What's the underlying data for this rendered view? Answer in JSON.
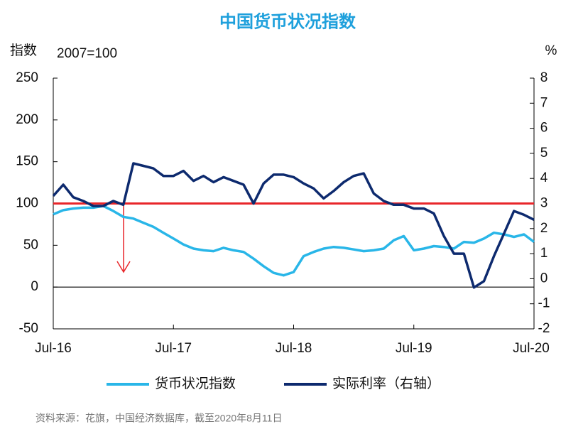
{
  "chart_data": {
    "type": "line",
    "title": "中国货币状况指数",
    "y_label": "指数",
    "y_note": "2007=100",
    "y2_label": "%",
    "source": "资料来源：花旗，中国经济数据库，截至2020年8月11日",
    "categories": [
      "Jul-16",
      null,
      null,
      null,
      null,
      null,
      null,
      null,
      null,
      null,
      null,
      null,
      "Jul-17",
      null,
      null,
      null,
      null,
      null,
      null,
      null,
      null,
      null,
      null,
      null,
      "Jul-18",
      null,
      null,
      null,
      null,
      null,
      null,
      null,
      null,
      null,
      null,
      null,
      "Jul-19",
      null,
      null,
      null,
      null,
      null,
      null,
      null,
      null,
      null,
      null,
      null,
      "Jul-20"
    ],
    "series": [
      {
        "name": "货币状况指数",
        "color": "#29b6e8",
        "axis": "y",
        "values": [
          87,
          92,
          94,
          95,
          95,
          97,
          91,
          84,
          82,
          77,
          72,
          65,
          58,
          51,
          46,
          44,
          43,
          47,
          44,
          42,
          34,
          25,
          17,
          14,
          18,
          37,
          42,
          46,
          48,
          47,
          45,
          43,
          44,
          46,
          56,
          61,
          44,
          46,
          49,
          48,
          46,
          54,
          53,
          58,
          65,
          63,
          60,
          63,
          54
        ]
      },
      {
        "name": "实际利率（右轴）",
        "color": "#0d2a6e",
        "axis": "y2",
        "values": [
          3.3,
          3.75,
          3.25,
          3.1,
          2.9,
          2.9,
          3.1,
          2.95,
          4.6,
          4.5,
          4.4,
          4.1,
          4.1,
          4.3,
          3.9,
          4.1,
          3.85,
          4.05,
          3.9,
          3.75,
          3.0,
          3.8,
          4.15,
          4.15,
          4.05,
          3.8,
          3.6,
          3.2,
          3.5,
          3.85,
          4.1,
          4.2,
          3.4,
          3.1,
          2.95,
          2.95,
          2.8,
          2.8,
          2.6,
          1.7,
          1.0,
          1.0,
          -0.35,
          -0.1,
          0.9,
          1.8,
          2.7,
          2.55,
          2.35
        ]
      }
    ],
    "reference_line": {
      "value": 100,
      "color": "#e8262a"
    },
    "ylim": [
      -50,
      250
    ],
    "yticks": [
      -50,
      0,
      50,
      100,
      150,
      200,
      250
    ],
    "y2lim": [
      -2,
      8
    ],
    "y2ticks": [
      -2,
      -1,
      0,
      1,
      2,
      3,
      4,
      5,
      6,
      7,
      8
    ]
  }
}
